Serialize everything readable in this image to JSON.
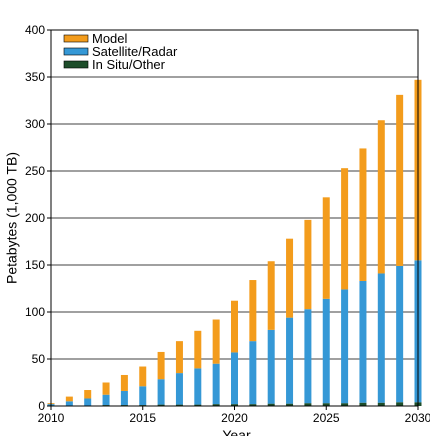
{
  "chart_data": {
    "type": "bar",
    "stacked": true,
    "xlabel": "Year",
    "ylabel": "Petabytes (1,000 TB)",
    "ylim": [
      0,
      400
    ],
    "xlim": [
      2010,
      2030
    ],
    "y_ticks": [
      "0",
      "50",
      "100",
      "150",
      "200",
      "250",
      "300",
      "350",
      "400"
    ],
    "x_ticks": [
      "2010",
      "2015",
      "2020",
      "2025",
      "2030"
    ],
    "grid": "horizontal",
    "legend_position": "top-left",
    "colors": {
      "Model": "#f39c1c",
      "Satellite/Radar": "#3598d6",
      "In Situ/Other": "#1d4d2a"
    },
    "years": [
      2010,
      2011,
      2012,
      2013,
      2014,
      2015,
      2016,
      2017,
      2018,
      2019,
      2020,
      2021,
      2022,
      2023,
      2024,
      2025,
      2026,
      2027,
      2028,
      2029,
      2030
    ],
    "series": [
      {
        "name": "In Situ/Other",
        "values": [
          0.5,
          0.5,
          0.5,
          1,
          1,
          1,
          1.5,
          1.5,
          1.5,
          2,
          2,
          2,
          2.5,
          2.5,
          3,
          3,
          3,
          3.5,
          3.5,
          4,
          4
        ]
      },
      {
        "name": "Satellite/Radar",
        "values": [
          1.5,
          4.5,
          7.5,
          11,
          15,
          20,
          27,
          33.5,
          38.5,
          43,
          55,
          67,
          78.5,
          91.5,
          100,
          111,
          121,
          129.5,
          137.5,
          145,
          151
        ]
      },
      {
        "name": "Model",
        "values": [
          1,
          5,
          9,
          13,
          17,
          21,
          29,
          34,
          40,
          47,
          55,
          65,
          73,
          84,
          95,
          108,
          129,
          141,
          163,
          182,
          192
        ]
      }
    ]
  }
}
